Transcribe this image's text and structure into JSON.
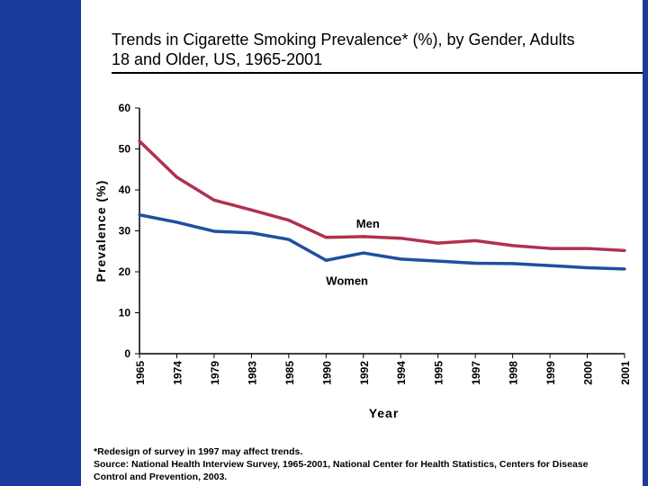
{
  "slide": {
    "title_line1": "Trends in Cigarette Smoking Prevalence* (%), by Gender, Adults",
    "title_line2": "18 and Older, US, 1965-2001",
    "footnote_line1": "*Redesign of survey in 1997 may affect trends.",
    "footnote_line2": "Source: National Health Interview Survey, 1965-2001, National Center for Health Statistics, Centers for Disease",
    "footnote_line3": "Control and Prevention, 2003.",
    "colors": {
      "accent_bar": "#1a3a9c",
      "men": "#b03050",
      "women": "#1f4fa0"
    }
  },
  "chart_data": {
    "type": "line",
    "title": "Trends in Cigarette Smoking Prevalence* (%), by Gender, Adults 18 and Older, US, 1965-2001",
    "xlabel": "Year",
    "ylabel": "Prevalence (%)",
    "ylim": [
      0,
      60
    ],
    "yticks": [
      0,
      10,
      20,
      30,
      40,
      50,
      60
    ],
    "categories": [
      "1965",
      "1974",
      "1979",
      "1983",
      "1985",
      "1990",
      "1992",
      "1994",
      "1995",
      "1997",
      "1998",
      "1999",
      "2000",
      "2001"
    ],
    "series": [
      {
        "name": "Men",
        "color": "#b03050",
        "values": [
          51.9,
          43.1,
          37.5,
          35.1,
          32.6,
          28.4,
          28.6,
          28.2,
          27.0,
          27.6,
          26.4,
          25.7,
          25.7,
          25.2
        ]
      },
      {
        "name": "Women",
        "color": "#1f4fa0",
        "values": [
          33.9,
          32.1,
          29.9,
          29.5,
          27.9,
          22.8,
          24.6,
          23.1,
          22.6,
          22.1,
          22.0,
          21.5,
          21.0,
          20.7
        ]
      }
    ],
    "grid": false,
    "legend": "inline labels"
  }
}
